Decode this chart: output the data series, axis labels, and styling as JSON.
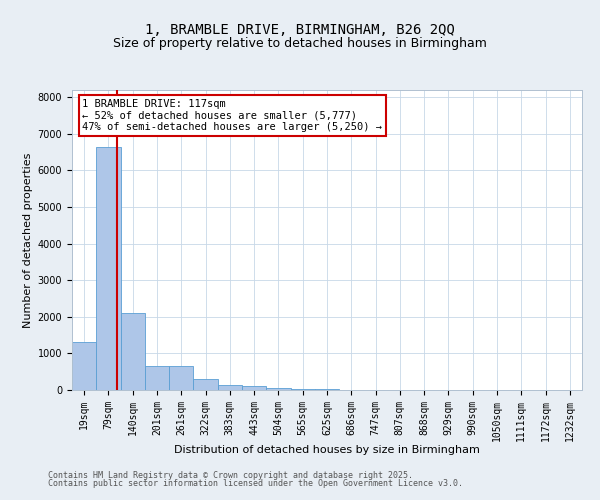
{
  "title": "1, BRAMBLE DRIVE, BIRMINGHAM, B26 2QQ",
  "subtitle": "Size of property relative to detached houses in Birmingham",
  "xlabel": "Distribution of detached houses by size in Birmingham",
  "ylabel": "Number of detached properties",
  "bar_labels": [
    "19sqm",
    "79sqm",
    "140sqm",
    "201sqm",
    "261sqm",
    "322sqm",
    "383sqm",
    "443sqm",
    "504sqm",
    "565sqm",
    "625sqm",
    "686sqm",
    "747sqm",
    "807sqm",
    "868sqm",
    "929sqm",
    "990sqm",
    "1050sqm",
    "1111sqm",
    "1172sqm",
    "1232sqm"
  ],
  "bar_values": [
    1300,
    6650,
    2100,
    650,
    650,
    300,
    150,
    100,
    60,
    30,
    30,
    0,
    0,
    0,
    0,
    0,
    0,
    0,
    0,
    0,
    0
  ],
  "bar_color": "#aec6e8",
  "bar_edge_color": "#5a9fd4",
  "vline_x_index": 1.87,
  "vline_color": "#cc0000",
  "annotation_text": "1 BRAMBLE DRIVE: 117sqm\n← 52% of detached houses are smaller (5,777)\n47% of semi-detached houses are larger (5,250) →",
  "annotation_box_color": "#cc0000",
  "ylim": [
    0,
    8200
  ],
  "yticks": [
    0,
    1000,
    2000,
    3000,
    4000,
    5000,
    6000,
    7000,
    8000
  ],
  "footnote1": "Contains HM Land Registry data © Crown copyright and database right 2025.",
  "footnote2": "Contains public sector information licensed under the Open Government Licence v3.0.",
  "bg_color": "#e8eef4",
  "plot_bg_color": "#ffffff",
  "grid_color": "#c8d8e8",
  "title_fontsize": 10,
  "subtitle_fontsize": 9,
  "axis_label_fontsize": 8,
  "tick_fontsize": 7,
  "footnote_fontsize": 6,
  "annot_fontsize": 7.5
}
